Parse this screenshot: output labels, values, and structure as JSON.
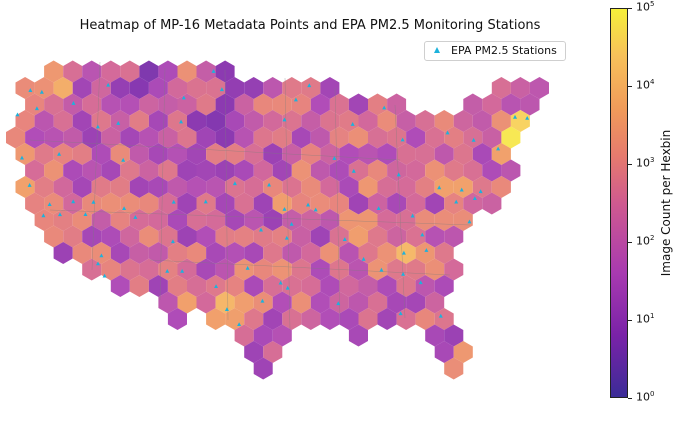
{
  "title": "Heatmap of MP-16 Metadata Points and EPA PM2.5 Monitoring Stations",
  "legend": {
    "entries": [
      {
        "label": "EPA PM2.5 Stations",
        "marker": "triangle",
        "color": "#1cb2dc"
      }
    ],
    "placement": "top-right"
  },
  "colorbar": {
    "label": "Image Count per Hexbin",
    "scale": "log",
    "range": [
      1,
      100000
    ],
    "ticks": [
      {
        "base": "10",
        "exp": "0",
        "value": 1
      },
      {
        "base": "10",
        "exp": "1",
        "value": 10
      },
      {
        "base": "10",
        "exp": "2",
        "value": 100
      },
      {
        "base": "10",
        "exp": "3",
        "value": 1000
      },
      {
        "base": "10",
        "exp": "4",
        "value": 10000
      },
      {
        "base": "10",
        "exp": "5",
        "value": 100000
      }
    ],
    "colormap": [
      "#3b2c97",
      "#7a22a8",
      "#a83ab0",
      "#cf5a8f",
      "#e67a6e",
      "#f09a5a",
      "#f7c15a",
      "#f6f03a"
    ]
  },
  "chart_data": {
    "type": "heatmap",
    "subtype": "hexbin-map",
    "region": "Contiguous United States",
    "color_scale": "log",
    "color_range": [
      1,
      100000
    ],
    "series": [
      {
        "kind": "hexbin",
        "quantity": "Image Count per Hexbin"
      },
      {
        "kind": "scatter",
        "name": "EPA PM2.5 Stations",
        "marker": "triangle",
        "color": "#1cb2dc"
      }
    ]
  }
}
